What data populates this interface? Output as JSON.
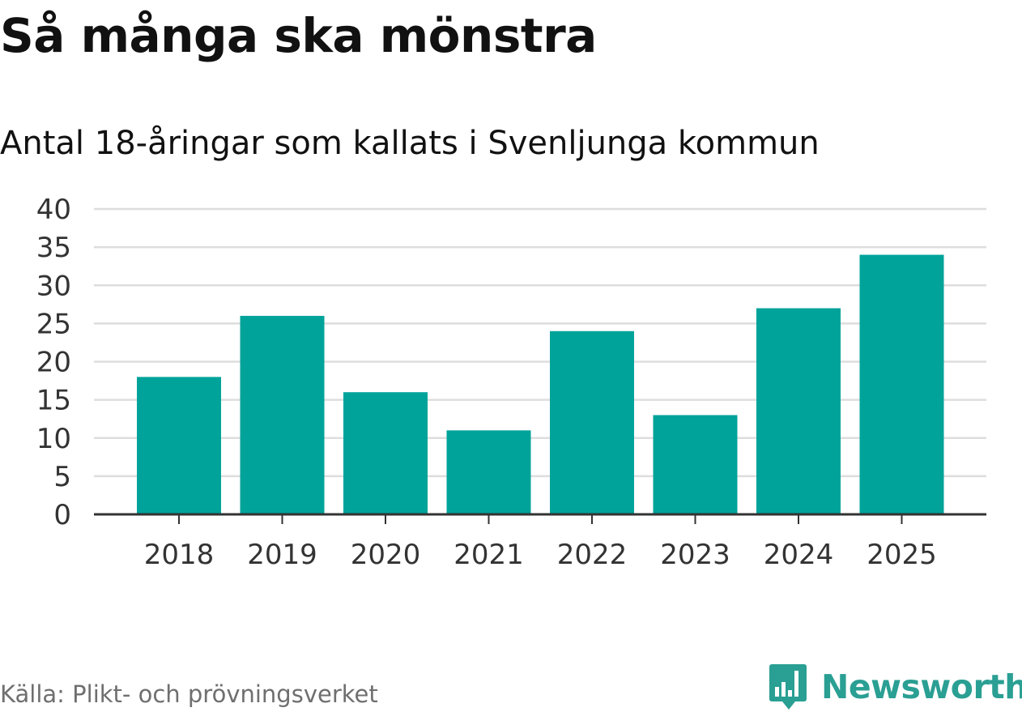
{
  "header": {
    "title": "Så många ska mönstra"
  },
  "footer": {
    "source": "Källa: Plikt- och prövningsverket",
    "brand": "Newsworthy"
  },
  "colors": {
    "bar": "#00a39a",
    "grid": "#dddddd",
    "axis": "#333333",
    "tick_text": "#333333",
    "brand": "#2a9f93"
  },
  "chart_data": {
    "type": "bar",
    "title": "Så många ska mönstra",
    "subtitle": "Antal 18-åringar som kallats i Svenljunga kommun",
    "xlabel": "",
    "ylabel": "",
    "categories": [
      "2018",
      "2019",
      "2020",
      "2021",
      "2022",
      "2023",
      "2024",
      "2025"
    ],
    "values": [
      18,
      26,
      16,
      11,
      24,
      13,
      27,
      34
    ],
    "ylim": [
      0,
      40
    ],
    "yticks": [
      0,
      5,
      10,
      15,
      20,
      25,
      30,
      35,
      40
    ],
    "grid": true,
    "legend": "none"
  }
}
